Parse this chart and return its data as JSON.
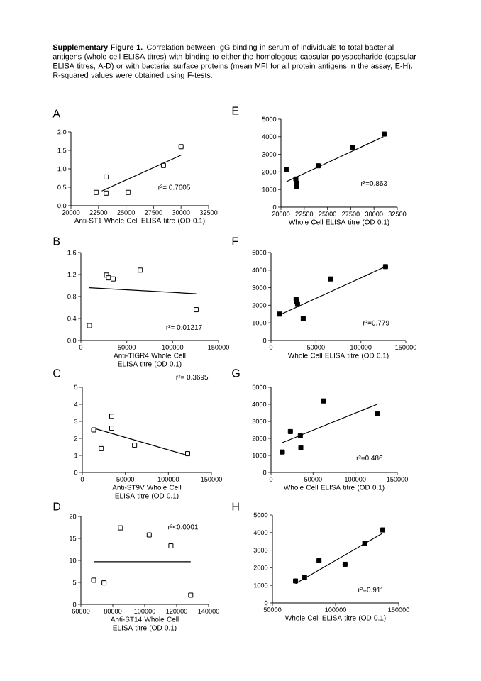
{
  "chart_data": [
    {
      "type": "scatter",
      "title": "A",
      "xlabel": "Anti-ST1 Whole Cell ELISA titre (OD 0.1)",
      "annotations": [
        "**Supplementary Figure 1.** Correlation between IgG binding in serum of individuals to total bacterial antigens (whole cell ELISA titres) with binding to either the homologous capsular polysaccharide (capsular ELISA titres, A-D) or with bacterial surface proteins (mean MFI for all protein antigens in the assay, E-H). R-squared values were obtained using F-tests.",
        "r²= 0.7605"
      ],
      "xlim": [
        20000,
        32500
      ],
      "xticks": [
        20000,
        22500,
        25000,
        27500,
        30000,
        32500
      ],
      "ylim": [
        0,
        2
      ],
      "yticks": [
        {
          "value": 0,
          "label": "0.0"
        },
        {
          "value": 0.5,
          "label": "0.5"
        },
        {
          "value": 1,
          "label": "1.0"
        },
        {
          "value": 1.5,
          "label": "1.5"
        },
        {
          "value": 2,
          "label": "2.0"
        }
      ],
      "series": [
        {
          "marker": "square",
          "color": "#000000",
          "x": [
            22300,
            23200,
            23200,
            25200,
            28400,
            30000
          ],
          "values": [
            0.36,
            0.34,
            0.78,
            0.36,
            1.09,
            1.6
          ]
        },
        {
          "type": "line",
          "color": "#000000",
          "x": [
            22800,
            30000
          ],
          "values": [
            0.4,
            1.37
          ]
        }
      ]
    },
    {
      "type": "scatter",
      "title": "B",
      "xlabel": "Anti-TIGR4 Whole Cell ELISA titre (OD 0.1)",
      "annotations": [
        "r²= 0.01217"
      ],
      "xlim": [
        0,
        150000
      ],
      "xticks": [
        0,
        50000,
        100000,
        150000
      ],
      "ylim": [
        0,
        1.6
      ],
      "yticks": [
        {
          "value": 0,
          "label": "0.0"
        },
        {
          "value": 0.4,
          "label": "0.4"
        },
        {
          "value": 0.8,
          "label": "0.8"
        },
        {
          "value": 1.2,
          "label": "1.2"
        },
        {
          "value": 1.6,
          "label": "1.6"
        }
      ],
      "series": [
        {
          "marker": "square",
          "color": "#000000",
          "x": [
            9300,
            27900,
            30000,
            35200,
            64700,
            125700
          ],
          "values": [
            0.27,
            1.19,
            1.14,
            1.12,
            1.28,
            0.56
          ]
        },
        {
          "type": "line",
          "color": "#000000",
          "x": [
            9300,
            125700
          ],
          "values": [
            0.96,
            0.85
          ]
        }
      ]
    },
    {
      "type": "scatter",
      "title": "C",
      "xlabel": "Anti-ST9V Whole Cell ELISA titre (OD 0.1)",
      "annotations": [
        "r²= 0.3695"
      ],
      "xlim": [
        0,
        150000
      ],
      "xticks": [
        0,
        50000,
        100000,
        150000
      ],
      "ylim": [
        0,
        5
      ],
      "yticks": [
        0,
        1,
        2,
        3,
        4,
        5
      ],
      "series": [
        {
          "marker": "square",
          "color": "#000000",
          "x": [
            13200,
            22000,
            34200,
            34200,
            60700,
            122400
          ],
          "values": [
            2.5,
            1.4,
            3.3,
            2.6,
            1.6,
            1.1
          ]
        },
        {
          "type": "line",
          "color": "#000000",
          "x": [
            13200,
            122400
          ],
          "values": [
            2.6,
            1.0
          ]
        }
      ]
    },
    {
      "type": "scatter",
      "title": "D",
      "xlabel": "Anti-ST14 Whole Cell ELISA titre (OD 0.1)",
      "annotations": [
        "r²<0.0001"
      ],
      "xlim": [
        60000,
        140000
      ],
      "xticks": [
        60000,
        80000,
        100000,
        120000,
        140000
      ],
      "ylim": [
        0,
        20
      ],
      "yticks": [
        0,
        5,
        10,
        15,
        20
      ],
      "series": [
        {
          "marker": "square",
          "color": "#000000",
          "x": [
            68000,
            74500,
            84800,
            102800,
            116400,
            128800
          ],
          "values": [
            5.5,
            4.9,
            17.4,
            15.8,
            13.3,
            2.1
          ]
        },
        {
          "type": "line",
          "color": "#000000",
          "x": [
            68000,
            128800
          ],
          "values": [
            9.7,
            9.7
          ]
        }
      ]
    },
    {
      "type": "scatter",
      "title": "E",
      "xlabel": "Whole Cell ELISA titre (OD 0.1)",
      "annotations": [
        "r²=0.863"
      ],
      "xlim": [
        20000,
        32500
      ],
      "xticks": [
        20000,
        22500,
        25000,
        27500,
        30000,
        32500
      ],
      "ylim": [
        0,
        5000
      ],
      "yticks": [
        0,
        1000,
        2000,
        3000,
        4000,
        5000
      ],
      "series": [
        {
          "marker": "square",
          "color": "#000000",
          "x": [
            20600,
            21600,
            21700,
            21700,
            24000,
            27700,
            31100
          ],
          "values": [
            2150,
            1600,
            1350,
            1150,
            2350,
            3400,
            4150
          ]
        },
        {
          "type": "line",
          "color": "#000000",
          "x": [
            20600,
            31000
          ],
          "values": [
            1450,
            4000
          ]
        }
      ]
    },
    {
      "type": "scatter",
      "title": "F",
      "xlabel": "Whole Cell ELISA titre (OD 0.1)",
      "annotations": [
        "r²=0.779"
      ],
      "xlim": [
        0,
        150000
      ],
      "xticks": [
        0,
        50000,
        100000,
        150000
      ],
      "ylim": [
        0,
        5000
      ],
      "yticks": [
        0,
        1000,
        2000,
        3000,
        4000,
        5000
      ],
      "series": [
        {
          "marker": "square",
          "color": "#000000",
          "x": [
            9500,
            27900,
            28400,
            29500,
            35800,
            66300,
            127400
          ],
          "values": [
            1500,
            2350,
            2200,
            2050,
            1250,
            3500,
            4200
          ]
        },
        {
          "type": "line",
          "color": "#000000",
          "x": [
            9500,
            127400
          ],
          "values": [
            1450,
            4200
          ]
        }
      ]
    },
    {
      "type": "scatter",
      "title": "G",
      "xlabel": "Whole Cell ELISA titre (OD 0.1)",
      "annotations": [
        "r²=0.486"
      ],
      "xlim": [
        0,
        150000
      ],
      "xticks": [
        0,
        50000,
        100000,
        150000
      ],
      "ylim": [
        0,
        5000
      ],
      "yticks": [
        0,
        1000,
        2000,
        3000,
        4000,
        5000
      ],
      "series": [
        {
          "marker": "square",
          "color": "#000000",
          "x": [
            13500,
            23000,
            34800,
            35400,
            62400,
            126000
          ],
          "values": [
            1200,
            2400,
            2150,
            1450,
            4200,
            3450
          ]
        },
        {
          "type": "line",
          "color": "#000000",
          "x": [
            13500,
            126000
          ],
          "values": [
            1750,
            4000
          ]
        }
      ]
    },
    {
      "type": "scatter",
      "title": "H",
      "xlabel": "Whole Cell ELISA titre (OD 0.1)",
      "annotations": [
        "r²=0.911"
      ],
      "xlim": [
        50000,
        150000
      ],
      "xticks": [
        50000,
        100000,
        150000
      ],
      "ylim": [
        0,
        5000
      ],
      "yticks": [
        0,
        1000,
        2000,
        3000,
        4000,
        5000
      ],
      "series": [
        {
          "marker": "square",
          "color": "#000000",
          "x": [
            68300,
            75400,
            86900,
            107500,
            123100,
            136900,
            137300
          ],
          "values": [
            1250,
            1450,
            2400,
            2200,
            3400,
            null,
            4150
          ]
        },
        {
          "type": "line",
          "color": "#000000",
          "x": [
            68300,
            136900
          ],
          "values": [
            1100,
            3950
          ]
        }
      ]
    }
  ]
}
